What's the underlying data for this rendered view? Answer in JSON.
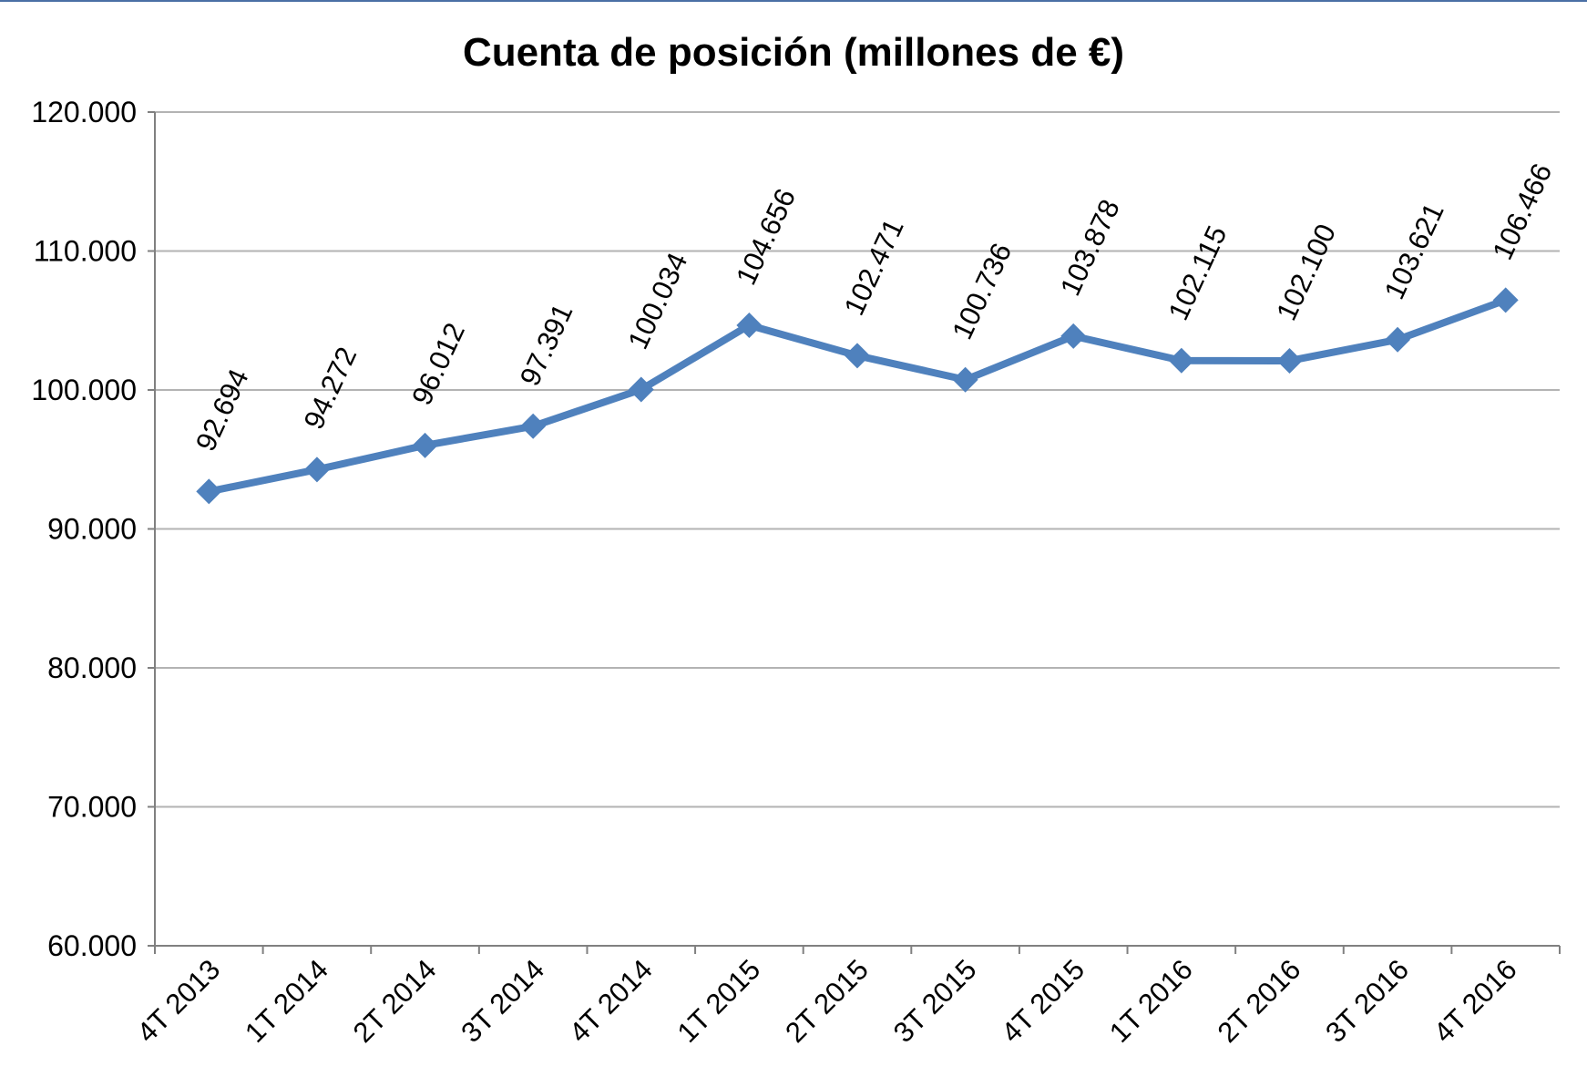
{
  "chart_data": {
    "type": "line",
    "title": "Cuenta de posición (millones de €)",
    "categories": [
      "4T 2013",
      "1T 2014",
      "2T 2014",
      "3T 2014",
      "4T 2014",
      "1T 2015",
      "2T 2015",
      "3T 2015",
      "4T 2015",
      "1T 2016",
      "2T 2016",
      "3T 2016",
      "4T 2016"
    ],
    "values": [
      92694,
      94272,
      96012,
      97391,
      100034,
      104656,
      102471,
      100736,
      103878,
      102115,
      102100,
      103621,
      106466
    ],
    "data_labels": [
      "92.694",
      "94.272",
      "96.012",
      "97.391",
      "100.034",
      "104.656",
      "102.471",
      "100.736",
      "103.878",
      "102.115",
      "102.100",
      "103.621",
      "106.466"
    ],
    "ylim": [
      60000,
      120000
    ],
    "yticks": [
      60000,
      70000,
      80000,
      90000,
      100000,
      110000,
      120000
    ],
    "ytick_labels": [
      "60.000",
      "70.000",
      "80.000",
      "90.000",
      "100.000",
      "110.000",
      "120.000"
    ],
    "grid": true,
    "legend": "none",
    "series_color": "#4f81bd",
    "grid_color": "#b3b3b3",
    "axis_color": "#808080"
  }
}
